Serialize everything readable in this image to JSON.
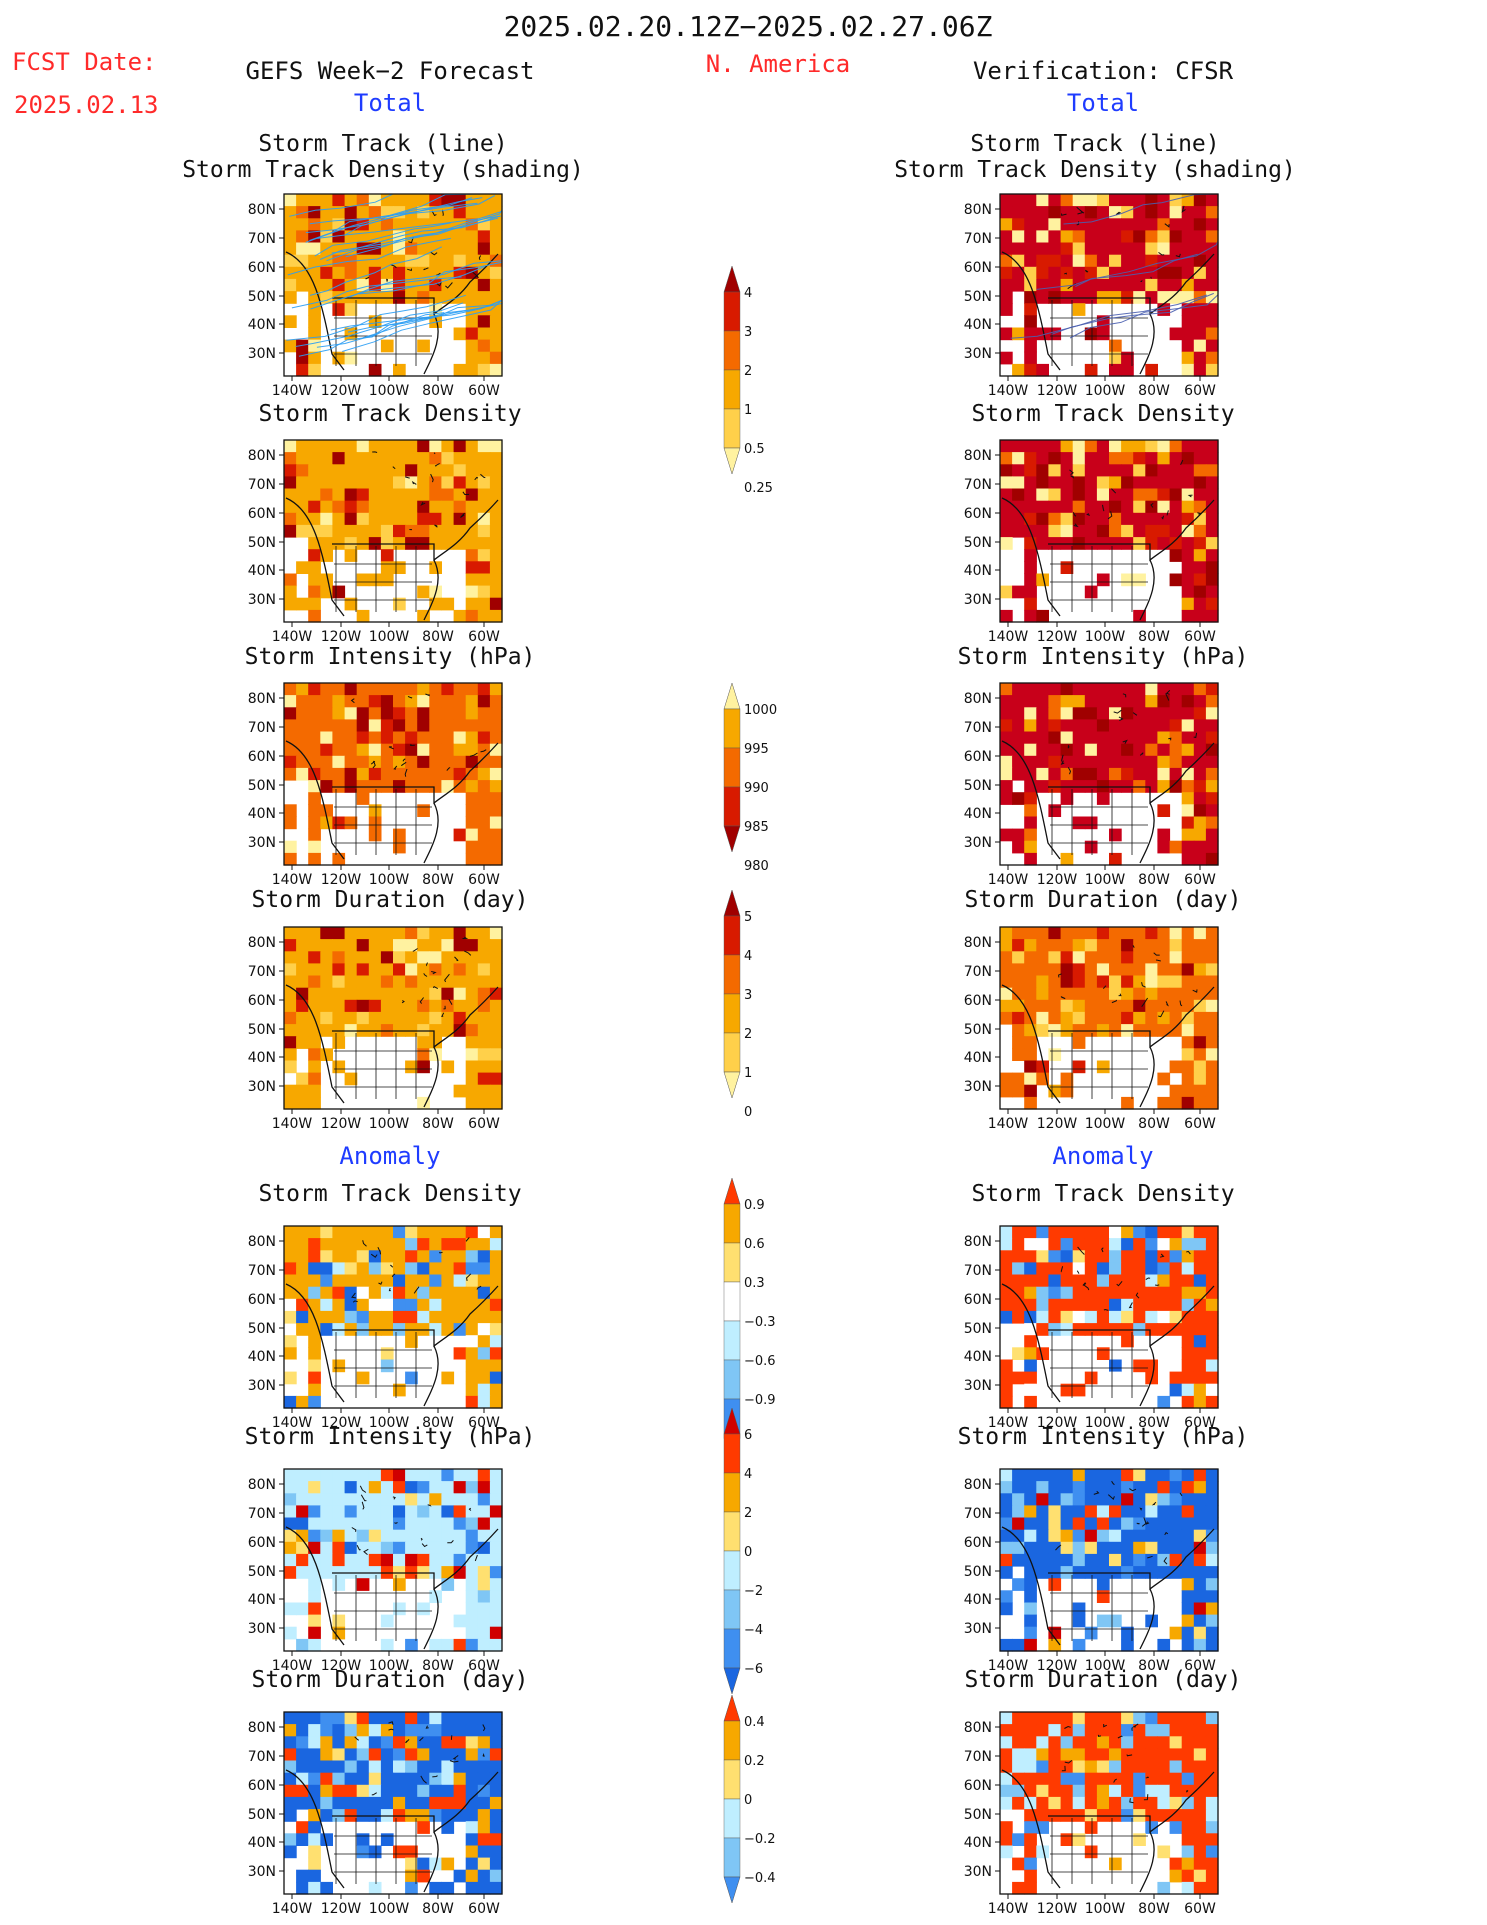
{
  "header": {
    "period": "2025.02.20.12Z−2025.02.27.06Z",
    "fcst_label": "FCST Date:",
    "fcst_date": "2025.02.13",
    "region": "N. America",
    "left_title": "GEFS Week−2 Forecast",
    "right_title": "Verification: CFSR",
    "total_left": "Total",
    "total_right": "Total",
    "anomaly_left": "Anomaly",
    "anomaly_right": "Anomaly"
  },
  "colors": {
    "map_line": "#111111",
    "track_line": "#2a9df4",
    "title_red": "#ff2a2a",
    "title_blue": "#1f3cff"
  },
  "chart_data": [
    {
      "type": "heatmap",
      "grid": "left",
      "titles": [
        "Storm Track (line)",
        "Storm Track Density (shading)"
      ],
      "lon_ticks": [
        "140W",
        "120W",
        "100W",
        "80W",
        "60W"
      ],
      "lat_ticks": [
        "80N",
        "70N",
        "60N",
        "50N",
        "40N",
        "30N"
      ],
      "colorbar": "density",
      "has_tracks": true,
      "dominant_color": "#f7a800"
    },
    {
      "type": "heatmap",
      "grid": "right",
      "titles": [
        "Storm Track (line)",
        "Storm Track Density (shading)"
      ],
      "lon_ticks": [
        "140W",
        "120W",
        "100W",
        "80W",
        "60W"
      ],
      "lat_ticks": [
        "80N",
        "70N",
        "60N",
        "50N",
        "40N",
        "30N"
      ],
      "colorbar": "density",
      "has_tracks": true,
      "dominant_color": "#c8001a"
    },
    {
      "type": "heatmap",
      "grid": "left",
      "titles": [
        "Storm Track Density"
      ],
      "lon_ticks": [
        "140W",
        "120W",
        "100W",
        "80W",
        "60W"
      ],
      "lat_ticks": [
        "80N",
        "70N",
        "60N",
        "50N",
        "40N",
        "30N"
      ],
      "colorbar": "density",
      "dominant_color": "#f7a800"
    },
    {
      "type": "heatmap",
      "grid": "right",
      "titles": [
        "Storm Track Density"
      ],
      "lon_ticks": [
        "140W",
        "120W",
        "100W",
        "80W",
        "60W"
      ],
      "lat_ticks": [
        "80N",
        "70N",
        "60N",
        "50N",
        "40N",
        "30N"
      ],
      "colorbar": "density",
      "dominant_color": "#c8001a"
    },
    {
      "type": "heatmap",
      "grid": "left",
      "titles": [
        "Storm Intensity (hPa)"
      ],
      "lon_ticks": [
        "140W",
        "120W",
        "100W",
        "80W",
        "60W"
      ],
      "lat_ticks": [
        "80N",
        "70N",
        "60N",
        "50N",
        "40N",
        "30N"
      ],
      "colorbar": "intensity",
      "dominant_color": "#f46a00"
    },
    {
      "type": "heatmap",
      "grid": "right",
      "titles": [
        "Storm Intensity (hPa)"
      ],
      "lon_ticks": [
        "140W",
        "120W",
        "100W",
        "80W",
        "60W"
      ],
      "lat_ticks": [
        "80N",
        "70N",
        "60N",
        "50N",
        "40N",
        "30N"
      ],
      "colorbar": "intensity",
      "dominant_color": "#c8001a"
    },
    {
      "type": "heatmap",
      "grid": "left",
      "titles": [
        "Storm Duration (day)"
      ],
      "lon_ticks": [
        "140W",
        "120W",
        "100W",
        "80W",
        "60W"
      ],
      "lat_ticks": [
        "80N",
        "70N",
        "60N",
        "50N",
        "40N",
        "30N"
      ],
      "colorbar": "duration",
      "dominant_color": "#f7a800"
    },
    {
      "type": "heatmap",
      "grid": "right",
      "titles": [
        "Storm Duration (day)"
      ],
      "lon_ticks": [
        "140W",
        "120W",
        "100W",
        "80W",
        "60W"
      ],
      "lat_ticks": [
        "80N",
        "70N",
        "60N",
        "50N",
        "40N",
        "30N"
      ],
      "colorbar": "duration",
      "dominant_color": "#f46a00"
    },
    {
      "type": "heatmap",
      "grid": "left",
      "titles": [
        "Storm Track Density"
      ],
      "lon_ticks": [
        "140W",
        "120W",
        "100W",
        "80W",
        "60W"
      ],
      "lat_ticks": [
        "80N",
        "70N",
        "60N",
        "50N",
        "40N",
        "30N"
      ],
      "colorbar": "anom_density",
      "dominant_color": "#f7a800"
    },
    {
      "type": "heatmap",
      "grid": "right",
      "titles": [
        "Storm Track Density"
      ],
      "lon_ticks": [
        "140W",
        "120W",
        "100W",
        "80W",
        "60W"
      ],
      "lat_ticks": [
        "80N",
        "70N",
        "60N",
        "50N",
        "40N",
        "30N"
      ],
      "colorbar": "anom_density",
      "dominant_color": "#ff3a00"
    },
    {
      "type": "heatmap",
      "grid": "left",
      "titles": [
        "Storm Intensity (hPa)"
      ],
      "lon_ticks": [
        "140W",
        "120W",
        "100W",
        "80W",
        "60W"
      ],
      "lat_ticks": [
        "80N",
        "70N",
        "60N",
        "50N",
        "40N",
        "30N"
      ],
      "colorbar": "anom_intensity",
      "dominant_color": "#bfeeff"
    },
    {
      "type": "heatmap",
      "grid": "right",
      "titles": [
        "Storm Intensity (hPa)"
      ],
      "lon_ticks": [
        "140W",
        "120W",
        "100W",
        "80W",
        "60W"
      ],
      "lat_ticks": [
        "80N",
        "70N",
        "60N",
        "50N",
        "40N",
        "30N"
      ],
      "colorbar": "anom_intensity",
      "dominant_color": "#1a66e0"
    },
    {
      "type": "heatmap",
      "grid": "left",
      "titles": [
        "Storm Duration (day)"
      ],
      "lon_ticks": [
        "140W",
        "120W",
        "100W",
        "80W",
        "60W"
      ],
      "lat_ticks": [
        "80N",
        "70N",
        "60N",
        "50N",
        "40N",
        "30N"
      ],
      "colorbar": "anom_duration",
      "dominant_color": "#1a66e0"
    },
    {
      "type": "heatmap",
      "grid": "right",
      "titles": [
        "Storm Duration (day)"
      ],
      "lon_ticks": [
        "140W",
        "120W",
        "100W",
        "80W",
        "60W"
      ],
      "lat_ticks": [
        "80N",
        "70N",
        "60N",
        "50N",
        "40N",
        "30N"
      ],
      "colorbar": "anom_duration",
      "dominant_color": "#ff3a00"
    }
  ],
  "colorbars": {
    "density": {
      "labels": [
        "4",
        "3",
        "2",
        "1",
        "0.5",
        "0.25"
      ],
      "colors": [
        "#a00000",
        "#d81a00",
        "#f46a00",
        "#f7a800",
        "#ffd04a",
        "#fff2a0"
      ]
    },
    "intensity": {
      "labels": [
        "1000",
        "995",
        "990",
        "985",
        "980"
      ],
      "colors": [
        "#fff2a0",
        "#f7a800",
        "#f46a00",
        "#d81a00",
        "#a00000"
      ]
    },
    "duration": {
      "labels": [
        "5",
        "4",
        "3",
        "2",
        "1",
        "0"
      ],
      "colors": [
        "#a00000",
        "#d81a00",
        "#f46a00",
        "#f7a800",
        "#ffd04a",
        "#fff2a0"
      ]
    },
    "anom_density": {
      "labels": [
        "0.9",
        "0.6",
        "0.3",
        "−0.3",
        "−0.6",
        "−0.9"
      ],
      "colors": [
        "#ff3a00",
        "#f7a800",
        "#ffe070",
        "#ffffff",
        "#bfeeff",
        "#7fc6f5",
        "#3f8ff0",
        "#1a66e0"
      ]
    },
    "anom_intensity": {
      "labels": [
        "6",
        "4",
        "2",
        "0",
        "−2",
        "−4",
        "−6"
      ],
      "colors": [
        "#d00000",
        "#ff3a00",
        "#f7a800",
        "#ffe070",
        "#bfeeff",
        "#7fc6f5",
        "#3f8ff0",
        "#1a66e0"
      ]
    },
    "anom_duration": {
      "labels": [
        "0.4",
        "0.2",
        "0",
        "−0.2",
        "−0.4"
      ],
      "colors": [
        "#ff3a00",
        "#f7a800",
        "#ffe070",
        "#bfeeff",
        "#7fc6f5",
        "#3f8ff0"
      ]
    }
  }
}
